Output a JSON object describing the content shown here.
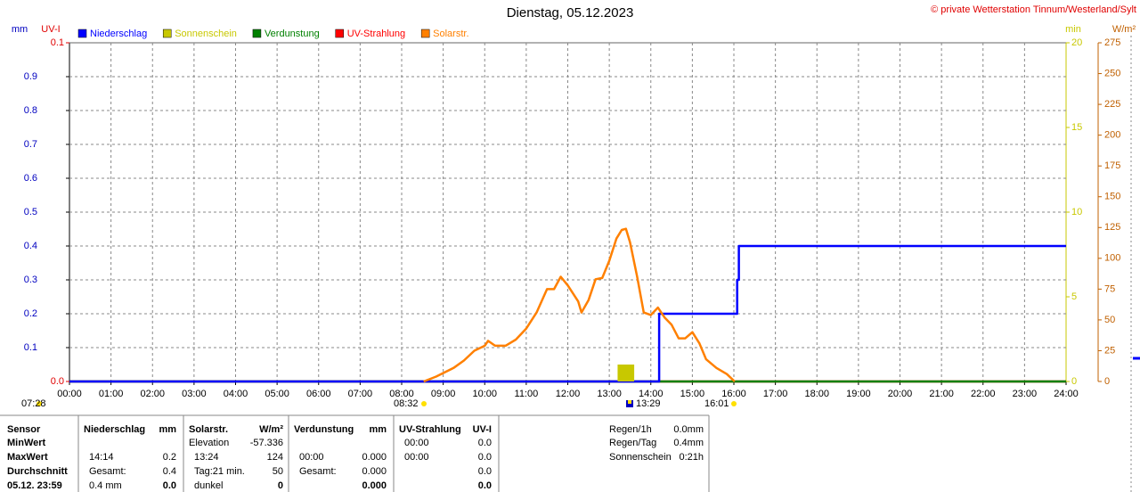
{
  "chart_data": {
    "type": "line",
    "title": "Dienstag, 05.12.2023",
    "copyright": "© private Wetterstation Tinnum/Westerland/Sylt",
    "y_label": "mm",
    "uv_label": "UV-I",
    "y2_label": "min",
    "y3_label": "W/m²",
    "xlim": [
      0,
      24
    ],
    "xticks": [
      {
        "value": 0,
        "label": "00:00"
      },
      {
        "value": 1,
        "label": "01:00"
      },
      {
        "value": 2,
        "label": "02:00"
      },
      {
        "value": 3,
        "label": "03:00"
      },
      {
        "value": 4,
        "label": "04:00"
      },
      {
        "value": 5,
        "label": "05:00"
      },
      {
        "value": 6,
        "label": "06:00"
      },
      {
        "value": 7,
        "label": "07:00"
      },
      {
        "value": 8,
        "label": "08:00"
      },
      {
        "value": 9,
        "label": "09:00"
      },
      {
        "value": 10,
        "label": "10:00"
      },
      {
        "value": 11,
        "label": "11:00"
      },
      {
        "value": 12,
        "label": "12:00"
      },
      {
        "value": 13,
        "label": "13:00"
      },
      {
        "value": 14,
        "label": "14:00"
      },
      {
        "value": 15,
        "label": "15:00"
      },
      {
        "value": 16,
        "label": "16:00"
      },
      {
        "value": 17,
        "label": "17:00"
      },
      {
        "value": 18,
        "label": "18:00"
      },
      {
        "value": 19,
        "label": "19:00"
      },
      {
        "value": 20,
        "label": "20:00"
      },
      {
        "value": 21,
        "label": "21:00"
      },
      {
        "value": 22,
        "label": "22:00"
      },
      {
        "value": 23,
        "label": "23:00"
      },
      {
        "value": 24,
        "label": "24:00"
      }
    ],
    "ylim": [
      0,
      1
    ],
    "yticks": [
      0.1,
      0.2,
      0.3,
      0.4,
      0.5,
      0.6,
      0.7,
      0.8,
      0.9
    ],
    "uvlim": [
      0,
      0.1
    ],
    "uvticks": [
      {
        "value": 0,
        "label": "0.0"
      },
      0.1
    ],
    "y2lim": [
      0,
      20
    ],
    "y2ticks": [
      0,
      5,
      10,
      15,
      20
    ],
    "y3lim": [
      0,
      275
    ],
    "y3ticks": [
      0,
      25,
      50,
      75,
      100,
      125,
      150,
      175,
      200,
      225,
      250,
      275
    ],
    "grid": true,
    "series": [
      {
        "name": "Niederschlag",
        "color": "#0000ff",
        "kind": "line",
        "x": [
          0,
          14.2,
          14.2,
          16.08,
          16.08,
          16.12,
          16.12,
          24
        ],
        "values": [
          0,
          0,
          0.2,
          0.2,
          0.3,
          0.3,
          0.4,
          0.4
        ]
      },
      {
        "name": "Sonnenschein",
        "color": "#c8c800",
        "kind": "bar",
        "axis": "y2",
        "x": [
          13.4
        ],
        "values": [
          1
        ]
      },
      {
        "name": "Verdunstung",
        "color": "#008000",
        "kind": "line",
        "x": [
          0,
          24
        ],
        "values": [
          0,
          0
        ]
      },
      {
        "name": "UV-Strahlung",
        "color": "#ff0000",
        "kind": "line",
        "axis": "uv",
        "x": [
          0,
          24
        ],
        "values": [
          0,
          0
        ]
      },
      {
        "name": "Solarstr.",
        "color": "#ff8000",
        "kind": "line",
        "axis": "y3",
        "x": [
          8.53,
          8.83,
          9.25,
          9.5,
          9.75,
          10,
          10.08,
          10.25,
          10.5,
          10.75,
          11,
          11.25,
          11.5,
          11.67,
          11.83,
          12,
          12.25,
          12.33,
          12.5,
          12.67,
          12.83,
          13,
          13.17,
          13.3,
          13.4,
          13.5,
          13.67,
          13.83,
          14,
          14.17,
          14.33,
          14.5,
          14.67,
          14.83,
          15,
          15.17,
          15.33,
          15.58,
          15.83,
          16.02
        ],
        "values": [
          0,
          4,
          11,
          17,
          25,
          29,
          33,
          29,
          29,
          34,
          43,
          56,
          75,
          75,
          85,
          78,
          65,
          56,
          66,
          83,
          84,
          98,
          116,
          123,
          124,
          113,
          85,
          56,
          54,
          60,
          52,
          46,
          35,
          35,
          40,
          31,
          18,
          11,
          6,
          0
        ]
      }
    ],
    "events": [
      "07:28",
      "08:32",
      "13:29",
      "16:01"
    ],
    "table": {
      "rowheads": [
        "Sensor",
        "MinWert",
        "MaxWert",
        "Durchschnitt",
        "05.12. 23:59"
      ],
      "columns": [
        {
          "header": "Niederschlag",
          "unit": "mm",
          "cells": [
            [
              null,
              null
            ],
            [
              "14:14",
              "0.2"
            ],
            [
              "Gesamt:",
              "0.4"
            ],
            [
              "0.4 mm",
              "0.0"
            ]
          ]
        },
        {
          "header": "Solarstr.",
          "unit": "W/m²",
          "cells": [
            [
              "Elevation",
              "-57.336"
            ],
            [
              "13:24",
              "124"
            ],
            [
              "Tag:21 min.",
              "50"
            ],
            [
              "dunkel",
              "0"
            ]
          ]
        },
        {
          "header": "Verdunstung",
          "unit": "mm",
          "cells": [
            [
              null,
              null
            ],
            [
              "00:00",
              "0.000"
            ],
            [
              "Gesamt:",
              "0.000"
            ],
            [
              null,
              "0.000"
            ]
          ]
        },
        {
          "header": "UV-Strahlung",
          "unit": "UV-I",
          "cells": [
            [
              "00:00",
              "0.0"
            ],
            [
              "00:00",
              "0.0"
            ],
            [
              null,
              "0.0"
            ],
            [
              null,
              "0.0"
            ]
          ]
        }
      ],
      "summary": [
        [
          "Regen/1h",
          "0.0mm"
        ],
        [
          "Regen/Tag",
          "0.4mm"
        ],
        [
          "Sonnenschein",
          "0:21h"
        ]
      ]
    }
  }
}
